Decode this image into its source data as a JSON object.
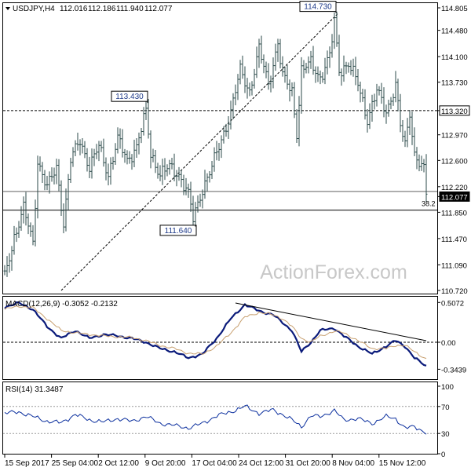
{
  "header": {
    "symbol": "USDJPY,H4",
    "open": "112.016",
    "high": "112.186",
    "low": "111.940",
    "close": "112.077"
  },
  "watermark": "ActionForex.com",
  "chart_data": [
    {
      "type": "bar",
      "panel": "price",
      "ylim": [
        110.72,
        114.805
      ],
      "y_ticks": [
        "114.805",
        "114.480",
        "114.100",
        "113.730",
        "113.320",
        "112.970",
        "112.600",
        "112.220",
        "112.077",
        "111.850",
        "111.470",
        "111.090",
        "110.720"
      ],
      "current_price": 112.077,
      "horizontal_lines": [
        {
          "value": 113.32,
          "style": "dashed",
          "label": "113.320"
        },
        {
          "value": 111.88,
          "style": "solid",
          "label": ""
        },
        {
          "value": 112.15,
          "style": "thin",
          "label": ""
        }
      ],
      "fib_label": "38.2",
      "trendline": {
        "from_index": 24,
        "from_value": 110.72,
        "to_index": 140,
        "to_value": 114.73,
        "style": "dashed"
      },
      "annotations": [
        {
          "text": "114.730",
          "index": 140,
          "value": 114.73
        },
        {
          "text": "113.430",
          "index": 60,
          "value": 113.43
        },
        {
          "text": "111.640",
          "index": 80,
          "value": 111.64
        }
      ],
      "x_ticks": [
        "15 Sep 2017",
        "25 Sep 04:00",
        "2 Oct 12:00",
        "9 Oct 20:00",
        "17 Oct 04:00",
        "24 Oct 12:00",
        "31 Oct 20:00",
        "8 Nov 04:00",
        "15 Nov 12:00"
      ],
      "ohlc_keypoints": [
        [
          0,
          110.9
        ],
        [
          4,
          111.5
        ],
        [
          8,
          111.9
        ],
        [
          12,
          111.4
        ],
        [
          14,
          112.6
        ],
        [
          18,
          112.2
        ],
        [
          22,
          112.5
        ],
        [
          25,
          111.7
        ],
        [
          28,
          112.6
        ],
        [
          32,
          112.9
        ],
        [
          36,
          112.5
        ],
        [
          40,
          112.8
        ],
        [
          44,
          112.4
        ],
        [
          48,
          112.9
        ],
        [
          52,
          112.6
        ],
        [
          56,
          112.8
        ],
        [
          60,
          113.3
        ],
        [
          62,
          112.7
        ],
        [
          66,
          112.4
        ],
        [
          70,
          112.5
        ],
        [
          74,
          112.4
        ],
        [
          78,
          112.1
        ],
        [
          80,
          111.75
        ],
        [
          84,
          112.2
        ],
        [
          88,
          112.5
        ],
        [
          92,
          112.9
        ],
        [
          96,
          113.3
        ],
        [
          100,
          113.9
        ],
        [
          104,
          113.6
        ],
        [
          108,
          114.2
        ],
        [
          112,
          113.7
        ],
        [
          116,
          114.3
        ],
        [
          118,
          113.8
        ],
        [
          122,
          113.6
        ],
        [
          124,
          113.0
        ],
        [
          126,
          113.9
        ],
        [
          130,
          114.0
        ],
        [
          134,
          113.8
        ],
        [
          138,
          114.1
        ],
        [
          140,
          114.6
        ],
        [
          142,
          113.9
        ],
        [
          146,
          114.0
        ],
        [
          150,
          113.7
        ],
        [
          154,
          113.2
        ],
        [
          158,
          113.6
        ],
        [
          162,
          113.3
        ],
        [
          166,
          113.7
        ],
        [
          168,
          113.1
        ],
        [
          170,
          112.8
        ],
        [
          172,
          113.3
        ],
        [
          174,
          112.7
        ],
        [
          178,
          112.45
        ],
        [
          179,
          112.1
        ]
      ]
    },
    {
      "type": "line",
      "panel": "macd",
      "title": "MACD(12,26,9) -0.3052 -0.2132",
      "ylim": [
        -0.46,
        0.56
      ],
      "y_ticks": [
        "0.5072",
        "0.00",
        "-0.3439"
      ],
      "zero_line": 0.0,
      "series": [
        {
          "name": "MACD",
          "keypoints": [
            [
              0,
              0.45
            ],
            [
              6,
              0.5
            ],
            [
              12,
              0.42
            ],
            [
              18,
              0.2
            ],
            [
              24,
              0.05
            ],
            [
              30,
              0.15
            ],
            [
              36,
              0.05
            ],
            [
              42,
              0.1
            ],
            [
              48,
              0.08
            ],
            [
              54,
              0.05
            ],
            [
              60,
              0.0
            ],
            [
              66,
              -0.08
            ],
            [
              72,
              -0.12
            ],
            [
              78,
              -0.2
            ],
            [
              84,
              -0.15
            ],
            [
              90,
              0.05
            ],
            [
              96,
              0.3
            ],
            [
              102,
              0.48
            ],
            [
              108,
              0.4
            ],
            [
              114,
              0.35
            ],
            [
              118,
              0.25
            ],
            [
              122,
              0.15
            ],
            [
              126,
              -0.12
            ],
            [
              130,
              0.0
            ],
            [
              134,
              0.15
            ],
            [
              140,
              0.18
            ],
            [
              144,
              0.08
            ],
            [
              150,
              -0.05
            ],
            [
              156,
              -0.15
            ],
            [
              162,
              -0.05
            ],
            [
              166,
              0.02
            ],
            [
              170,
              -0.05
            ],
            [
              174,
              -0.2
            ],
            [
              179,
              -0.3052
            ]
          ]
        },
        {
          "name": "Signal",
          "keypoints": [
            [
              0,
              0.42
            ],
            [
              6,
              0.46
            ],
            [
              12,
              0.44
            ],
            [
              18,
              0.3
            ],
            [
              24,
              0.15
            ],
            [
              30,
              0.12
            ],
            [
              36,
              0.1
            ],
            [
              42,
              0.08
            ],
            [
              48,
              0.07
            ],
            [
              54,
              0.06
            ],
            [
              60,
              0.02
            ],
            [
              66,
              -0.04
            ],
            [
              72,
              -0.08
            ],
            [
              78,
              -0.14
            ],
            [
              84,
              -0.15
            ],
            [
              90,
              -0.05
            ],
            [
              96,
              0.12
            ],
            [
              102,
              0.32
            ],
            [
              108,
              0.38
            ],
            [
              114,
              0.35
            ],
            [
              118,
              0.3
            ],
            [
              122,
              0.2
            ],
            [
              126,
              0.05
            ],
            [
              130,
              0.0
            ],
            [
              134,
              0.08
            ],
            [
              140,
              0.14
            ],
            [
              144,
              0.12
            ],
            [
              150,
              0.02
            ],
            [
              156,
              -0.08
            ],
            [
              162,
              -0.08
            ],
            [
              166,
              -0.04
            ],
            [
              170,
              -0.04
            ],
            [
              174,
              -0.12
            ],
            [
              179,
              -0.2132
            ]
          ]
        }
      ],
      "trendline": {
        "from_index": 98,
        "from_value": 0.5,
        "to_index": 179,
        "to_value": 0.02
      }
    },
    {
      "type": "line",
      "panel": "rsi",
      "title": "RSI(14) 31.3487",
      "ylim": [
        0,
        100
      ],
      "y_ticks": [
        "100",
        "70",
        "30",
        "0"
      ],
      "levels": [
        70,
        30
      ],
      "series": [
        {
          "name": "RSI",
          "keypoints": [
            [
              0,
              60
            ],
            [
              6,
              62
            ],
            [
              12,
              55
            ],
            [
              18,
              48
            ],
            [
              24,
              46
            ],
            [
              30,
              58
            ],
            [
              36,
              50
            ],
            [
              42,
              47
            ],
            [
              48,
              52
            ],
            [
              54,
              48
            ],
            [
              60,
              55
            ],
            [
              66,
              45
            ],
            [
              72,
              42
            ],
            [
              78,
              38
            ],
            [
              84,
              45
            ],
            [
              90,
              56
            ],
            [
              96,
              62
            ],
            [
              102,
              70
            ],
            [
              108,
              60
            ],
            [
              114,
              65
            ],
            [
              118,
              58
            ],
            [
              122,
              50
            ],
            [
              126,
              40
            ],
            [
              130,
              56
            ],
            [
              134,
              55
            ],
            [
              140,
              64
            ],
            [
              144,
              50
            ],
            [
              150,
              52
            ],
            [
              156,
              45
            ],
            [
              162,
              55
            ],
            [
              166,
              52
            ],
            [
              170,
              38
            ],
            [
              174,
              40
            ],
            [
              179,
              31.3487
            ]
          ]
        }
      ]
    }
  ]
}
